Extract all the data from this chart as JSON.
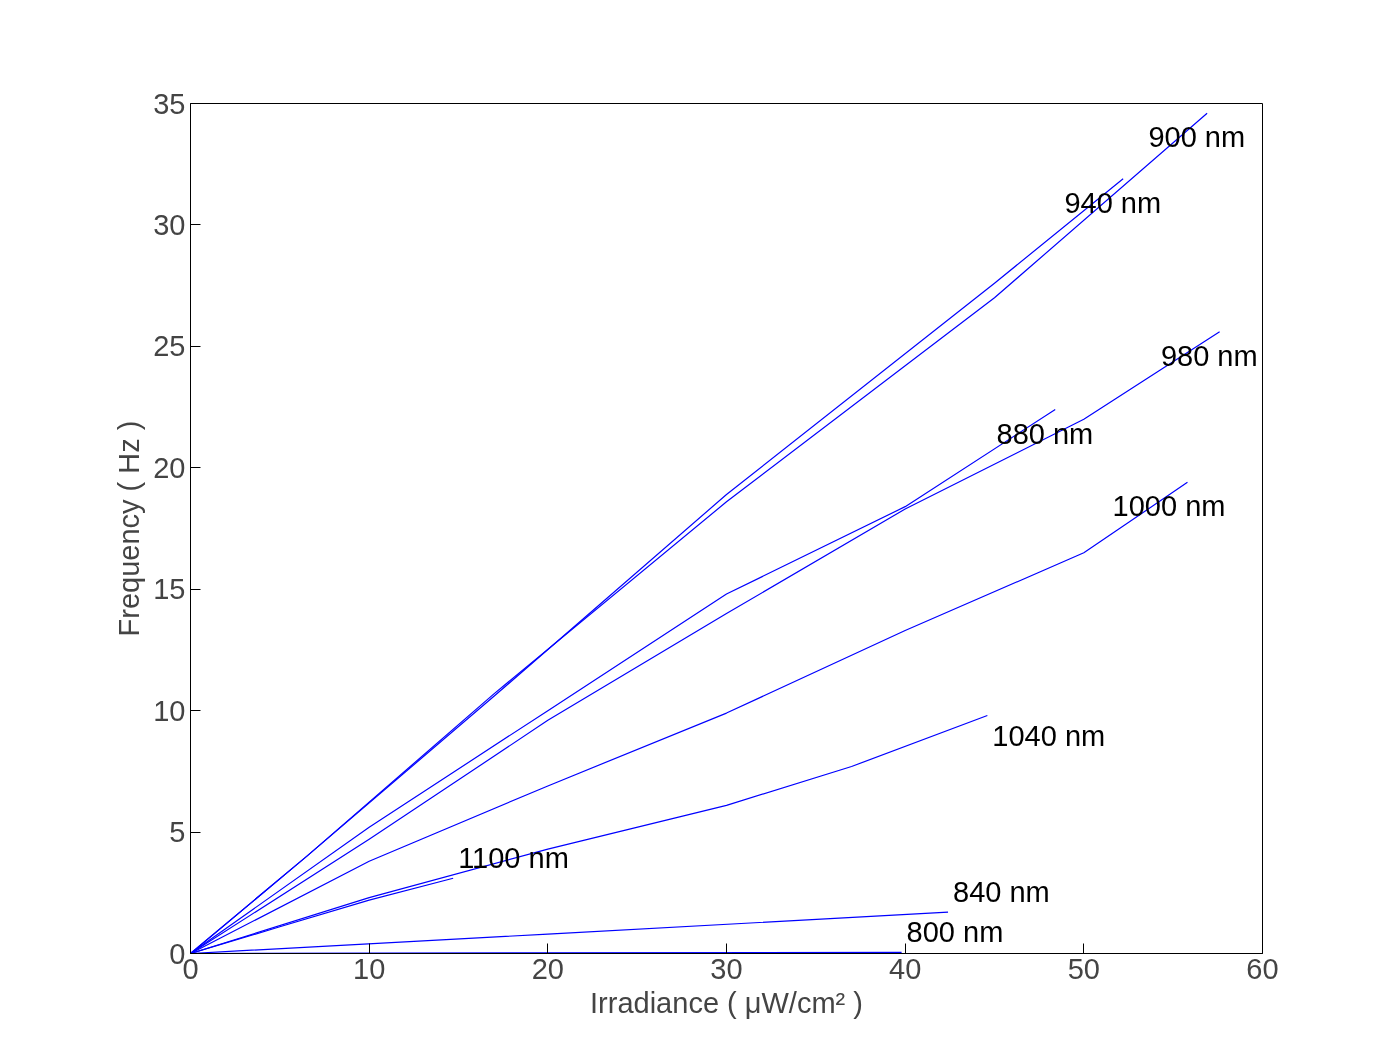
{
  "chart_data": {
    "type": "line",
    "xlabel": "Irradiance ( μW/cm² )",
    "ylabel": "Frequency ( Hz )",
    "xlim": [
      0,
      60
    ],
    "ylim": [
      0,
      35
    ],
    "xticks": [
      0,
      10,
      20,
      30,
      40,
      50,
      60
    ],
    "yticks": [
      0,
      5,
      10,
      15,
      20,
      25,
      30,
      35
    ],
    "series": [
      {
        "name": "900 nm",
        "color": "#0000ff",
        "x": [
          0,
          6.5,
          17,
          30,
          45,
          56.9
        ],
        "values": [
          0,
          4.0,
          10.7,
          18.6,
          27.0,
          34.6
        ]
      },
      {
        "name": "940 nm",
        "color": "#0000ff",
        "x": [
          0,
          6.5,
          17,
          30,
          45,
          52.2
        ],
        "values": [
          0,
          4.0,
          10.6,
          18.9,
          27.6,
          31.9
        ]
      },
      {
        "name": "880 nm",
        "color": "#0000ff",
        "x": [
          0,
          10,
          20,
          30,
          40,
          48.4
        ],
        "values": [
          0,
          5.2,
          10.0,
          14.8,
          18.4,
          22.4
        ]
      },
      {
        "name": "980 nm",
        "color": "#0000ff",
        "x": [
          0,
          10,
          20,
          30,
          40,
          50,
          57.6
        ],
        "values": [
          0,
          4.7,
          9.6,
          14.0,
          18.3,
          22.0,
          25.6
        ]
      },
      {
        "name": "1000 nm",
        "color": "#0000ff",
        "x": [
          0,
          10,
          20,
          30,
          40,
          50,
          55.8
        ],
        "values": [
          0,
          3.8,
          6.9,
          9.9,
          13.3,
          16.5,
          19.4
        ]
      },
      {
        "name": "1040 nm",
        "color": "#0000ff",
        "x": [
          0,
          10,
          20,
          30,
          37,
          44.6
        ],
        "values": [
          0,
          2.3,
          4.3,
          6.1,
          7.7,
          9.8
        ]
      },
      {
        "name": "1100 nm",
        "color": "#0000ff",
        "x": [
          0,
          5,
          10,
          14.7
        ],
        "values": [
          0,
          1.1,
          2.2,
          3.1
        ]
      },
      {
        "name": "840 nm",
        "color": "#0000ff",
        "x": [
          0,
          20,
          42.4
        ],
        "values": [
          0,
          0.8,
          1.7
        ]
      },
      {
        "name": "800 nm",
        "color": "#0000ff",
        "x": [
          0,
          39.8
        ],
        "values": [
          0,
          0.05
        ]
      }
    ]
  }
}
